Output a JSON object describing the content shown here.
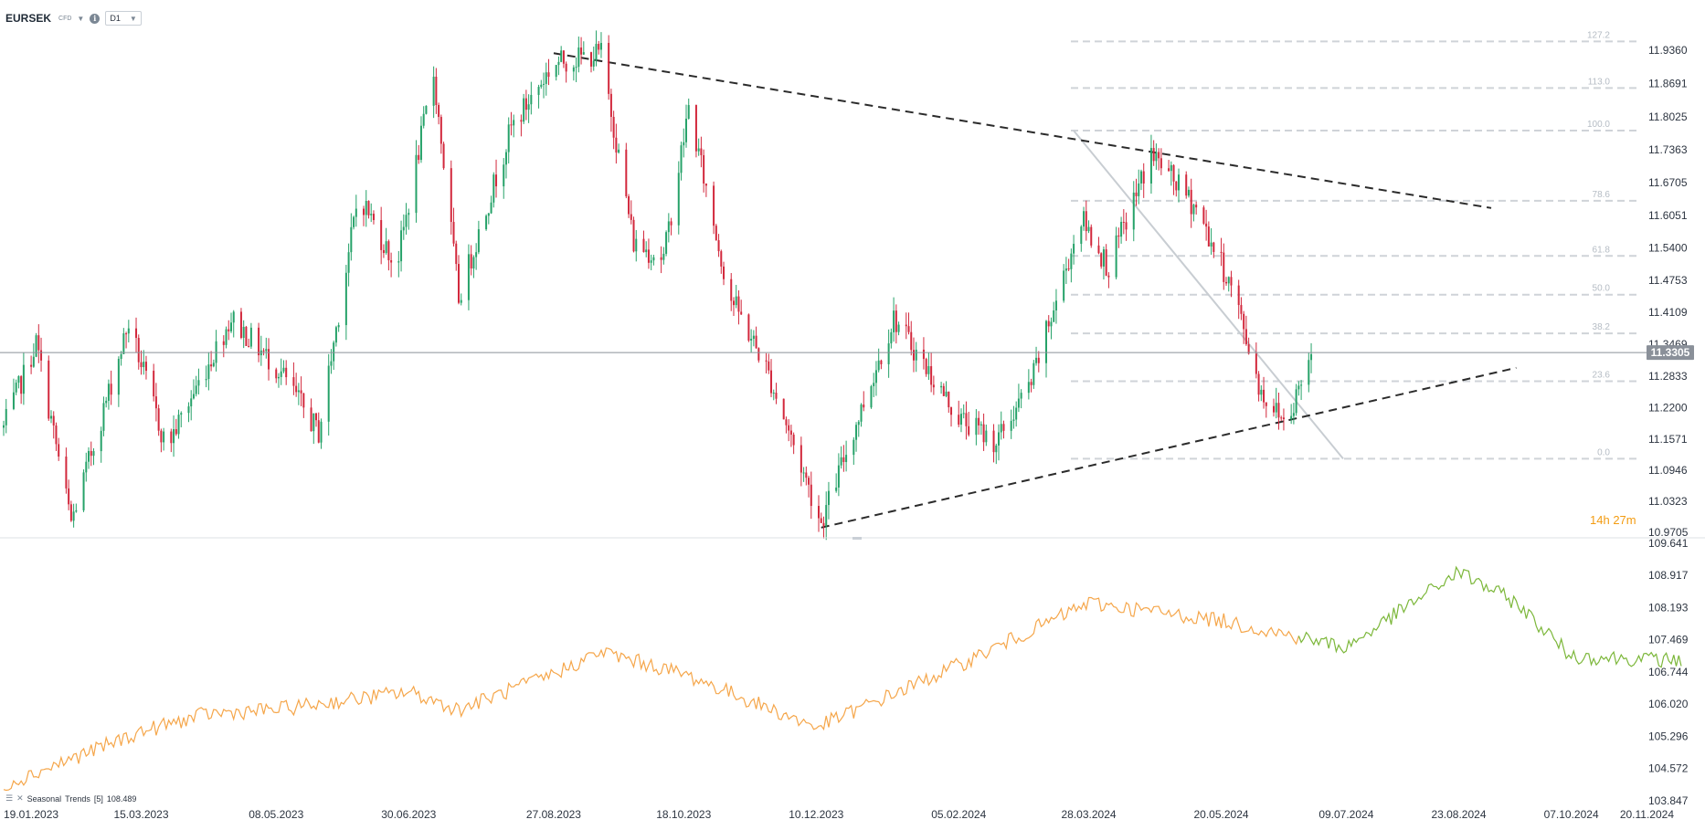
{
  "header": {
    "symbol": "EURSEK",
    "instrument_type": "CFD",
    "timeframe": "D1",
    "icons": [
      "chevron-down-icon",
      "info-icon",
      "chevron-down-icon"
    ]
  },
  "colors": {
    "bull": "#26a269",
    "bear": "#d2283c",
    "seasonal_past": "#f5a64a",
    "seasonal_future": "#7cb73a",
    "trendline": "#2b2b2b",
    "fib_line": "#cfd3d8",
    "price_line": "#8a9099",
    "timer": "#f39c12"
  },
  "price_axis": {
    "labels": [
      "11.9360",
      "11.8691",
      "11.8025",
      "11.7363",
      "11.6705",
      "11.6051",
      "11.5400",
      "11.4753",
      "11.4109",
      "11.3469",
      "11.2833",
      "11.2200",
      "11.1571",
      "11.0946",
      "11.0323",
      "10.9705"
    ],
    "current_price": "11.3305"
  },
  "indicator_axis": {
    "labels": [
      "109.641",
      "108.917",
      "108.193",
      "107.469",
      "106.744",
      "106.020",
      "105.296",
      "104.572",
      "103.847"
    ]
  },
  "time_axis": {
    "labels": [
      "19.01.2023",
      "15.03.2023",
      "08.05.2023",
      "30.06.2023",
      "27.08.2023",
      "18.10.2023",
      "10.12.2023",
      "05.02.2024",
      "28.03.2024",
      "20.05.2024",
      "09.07.2024",
      "23.08.2024",
      "07.10.2024",
      "20.11.2024"
    ]
  },
  "fibonacci": {
    "levels": [
      "127.2",
      "113.0",
      "100.0",
      "78.6",
      "61.8",
      "50.0",
      "38.2",
      "23.6",
      "0.0"
    ]
  },
  "timer": {
    "hours": "14",
    "h": "h",
    "minutes": "27",
    "m": "m"
  },
  "indicator": {
    "name": "Seasonal",
    "label": "Trends",
    "param": "[5]",
    "value": "108.489"
  },
  "chart_data": {
    "type": "candlestick",
    "instrument": "EURSEK",
    "timeframe": "D1",
    "x_range": [
      "19.01.2023",
      "20.11.2024"
    ],
    "price_range": [
      10.9705,
      11.936
    ],
    "current_price": 11.3305,
    "swing_points": [
      {
        "date": "19.01.2023",
        "price": 11.18
      },
      {
        "date": "01.02.2023",
        "price": 11.35
      },
      {
        "date": "15.02.2023",
        "price": 10.99
      },
      {
        "date": "10.03.2023",
        "price": 11.39
      },
      {
        "date": "25.03.2023",
        "price": 11.14
      },
      {
        "date": "20.04.2023",
        "price": 11.4
      },
      {
        "date": "10.05.2023",
        "price": 11.29
      },
      {
        "date": "25.05.2023",
        "price": 11.17
      },
      {
        "date": "10.06.2023",
        "price": 11.65
      },
      {
        "date": "25.06.2023",
        "price": 11.5
      },
      {
        "date": "10.07.2023",
        "price": 11.89
      },
      {
        "date": "20.07.2023",
        "price": 11.44
      },
      {
        "date": "10.08.2023",
        "price": 11.78
      },
      {
        "date": "27.08.2023",
        "price": 11.91
      },
      {
        "date": "15.09.2023",
        "price": 11.93
      },
      {
        "date": "28.09.2023",
        "price": 11.55
      },
      {
        "date": "10.10.2023",
        "price": 11.52
      },
      {
        "date": "20.10.2023",
        "price": 11.82
      },
      {
        "date": "05.11.2023",
        "price": 11.45
      },
      {
        "date": "20.11.2023",
        "price": 11.3
      },
      {
        "date": "12.12.2023",
        "price": 10.99
      },
      {
        "date": "10.01.2024",
        "price": 11.4
      },
      {
        "date": "05.02.2024",
        "price": 11.2
      },
      {
        "date": "20.02.2024",
        "price": 11.15
      },
      {
        "date": "05.03.2024",
        "price": 11.27
      },
      {
        "date": "25.03.2024",
        "price": 11.6
      },
      {
        "date": "05.04.2024",
        "price": 11.5
      },
      {
        "date": "22.04.2024",
        "price": 11.73
      },
      {
        "date": "10.05.2024",
        "price": 11.62
      },
      {
        "date": "25.05.2024",
        "price": 11.45
      },
      {
        "date": "05.06.2024",
        "price": 11.25
      },
      {
        "date": "15.06.2024",
        "price": 11.19
      },
      {
        "date": "25.06.2024",
        "price": 11.33
      }
    ],
    "trendlines": [
      {
        "name": "upper-trendline",
        "from": {
          "date": "27.08.2023",
          "price": 11.93
        },
        "to": {
          "date": "05.09.2024",
          "price": 11.62
        }
      },
      {
        "name": "lower-trendline",
        "from": {
          "date": "12.12.2023",
          "price": 10.98
        },
        "to": {
          "date": "15.09.2024",
          "price": 11.3
        }
      }
    ],
    "seasonal_trend": {
      "range": [
        103.847,
        109.641
      ],
      "points": [
        {
          "date": "19.01.2023",
          "value": 104.2
        },
        {
          "date": "15.03.2023",
          "value": 105.4
        },
        {
          "date": "10.04.2023",
          "value": 105.8
        },
        {
          "date": "08.05.2023",
          "value": 105.9
        },
        {
          "date": "30.06.2023",
          "value": 106.3
        },
        {
          "date": "20.07.2023",
          "value": 105.9
        },
        {
          "date": "27.08.2023",
          "value": 106.7
        },
        {
          "date": "15.09.2023",
          "value": 107.2
        },
        {
          "date": "18.10.2023",
          "value": 106.7
        },
        {
          "date": "10.12.2023",
          "value": 105.5
        },
        {
          "date": "20.01.2024",
          "value": 106.5
        },
        {
          "date": "05.02.2024",
          "value": 106.9
        },
        {
          "date": "28.03.2024",
          "value": 108.3
        },
        {
          "date": "20.05.2024",
          "value": 107.9
        },
        {
          "date": "09.07.2024",
          "value": 107.3
        },
        {
          "date": "23.08.2024",
          "value": 109.0
        },
        {
          "date": "15.09.2024",
          "value": 108.3
        },
        {
          "date": "07.10.2024",
          "value": 107.1
        },
        {
          "date": "20.11.2024",
          "value": 107.0
        }
      ]
    }
  }
}
